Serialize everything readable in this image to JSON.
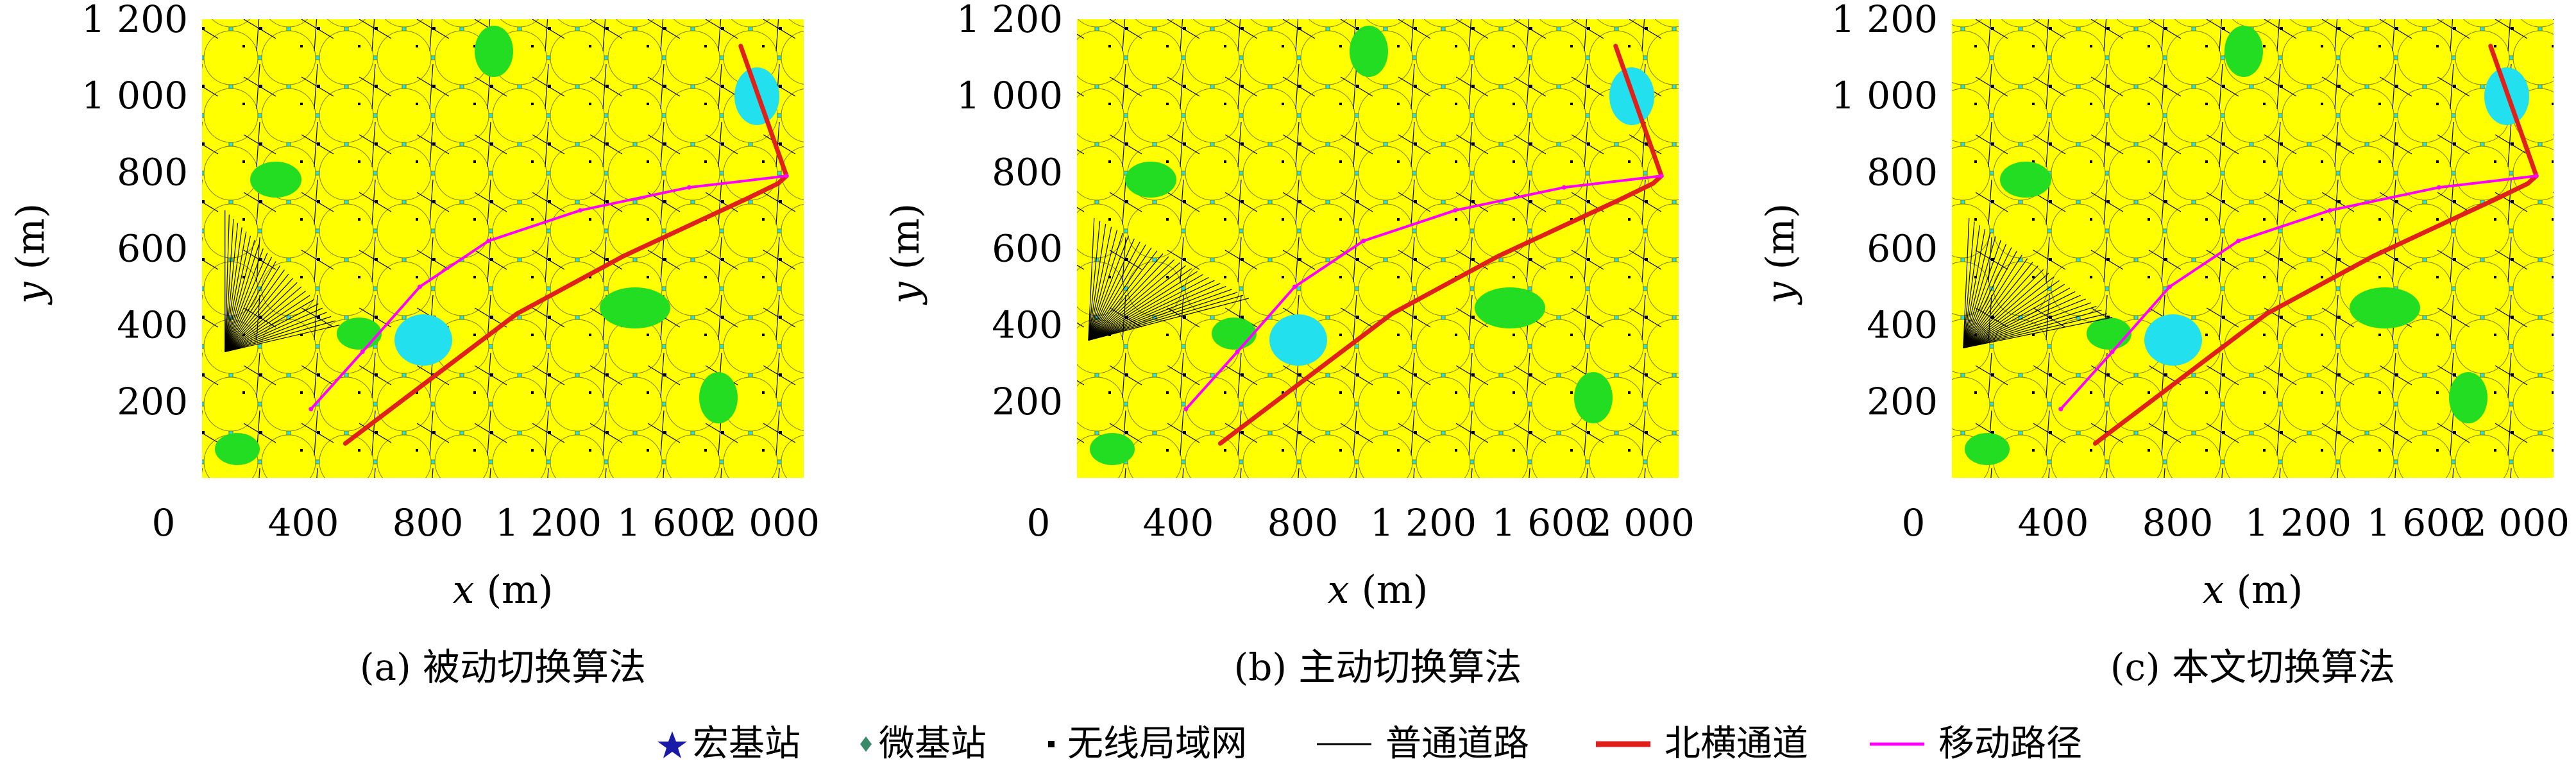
{
  "chart_data": [
    {
      "type": "scatter",
      "caption": "(a) 被动切换算法",
      "xlabel": "x (m)",
      "ylabel": "y (m)",
      "xlim": [
        0,
        2100
      ],
      "ylim": [
        0,
        1200
      ],
      "x_tick_labels": [
        "0",
        "400",
        "800",
        "1 200",
        "1 600",
        "2 000"
      ],
      "y_tick_labels": [
        "1 200",
        "1 000",
        "800",
        "600",
        "400",
        "200"
      ],
      "series": [
        {
          "name": "北横通道",
          "points": [
            [
              1880,
              1130
            ],
            [
              2040,
              790
            ],
            [
              2010,
              770
            ],
            [
              1900,
              730
            ],
            [
              1470,
              580
            ],
            [
              1100,
              430
            ],
            [
              800,
              260
            ],
            [
              500,
              90
            ]
          ]
        },
        {
          "name": "移动路径",
          "points": [
            [
              380,
              180
            ],
            [
              560,
              330
            ],
            [
              760,
              500
            ],
            [
              1000,
              620
            ],
            [
              1320,
              700
            ],
            [
              1700,
              760
            ],
            [
              2040,
              790
            ]
          ]
        }
      ]
    },
    {
      "type": "scatter",
      "caption": "(b) 主动切换算法",
      "xlabel": "x (m)",
      "ylabel": "y (m)",
      "xlim": [
        0,
        2100
      ],
      "ylim": [
        0,
        1200
      ],
      "x_tick_labels": [
        "0",
        "400",
        "800",
        "1 200",
        "1 600",
        "2 000"
      ],
      "y_tick_labels": [
        "1 200",
        "1 000",
        "800",
        "600",
        "400",
        "200"
      ],
      "series": [
        {
          "name": "北横通道",
          "points": [
            [
              1880,
              1130
            ],
            [
              2040,
              790
            ],
            [
              2010,
              770
            ],
            [
              1900,
              730
            ],
            [
              1470,
              580
            ],
            [
              1100,
              430
            ],
            [
              800,
              260
            ],
            [
              500,
              90
            ]
          ]
        },
        {
          "name": "移动路径",
          "points": [
            [
              380,
              180
            ],
            [
              560,
              330
            ],
            [
              760,
              500
            ],
            [
              1000,
              620
            ],
            [
              1320,
              700
            ],
            [
              1700,
              760
            ],
            [
              2040,
              790
            ]
          ]
        }
      ]
    },
    {
      "type": "scatter",
      "caption": "(c) 本文切换算法",
      "xlabel": "x (m)",
      "ylabel": "y (m)",
      "xlim": [
        0,
        2100
      ],
      "ylim": [
        0,
        1200
      ],
      "x_tick_labels": [
        "0",
        "400",
        "800",
        "1 200",
        "1 600",
        "2 000"
      ],
      "y_tick_labels": [
        "1 200",
        "1 000",
        "800",
        "600",
        "400",
        "200"
      ],
      "series": [
        {
          "name": "北横通道",
          "points": [
            [
              1880,
              1130
            ],
            [
              2040,
              790
            ],
            [
              2010,
              770
            ],
            [
              1900,
              730
            ],
            [
              1470,
              580
            ],
            [
              1100,
              430
            ],
            [
              800,
              260
            ],
            [
              500,
              90
            ]
          ]
        },
        {
          "name": "移动路径",
          "points": [
            [
              380,
              180
            ],
            [
              560,
              330
            ],
            [
              760,
              500
            ],
            [
              1000,
              620
            ],
            [
              1320,
              700
            ],
            [
              1700,
              760
            ],
            [
              2040,
              790
            ]
          ]
        }
      ]
    }
  ],
  "legend": {
    "items": [
      {
        "label": "宏基站",
        "marker": "star",
        "color": "#1a1aa8"
      },
      {
        "label": "微基站",
        "marker": "diamond",
        "color": "#3a8a6a"
      },
      {
        "label": "无线局域网",
        "marker": "square",
        "color": "#000000"
      },
      {
        "label": "普通道路",
        "marker": "line",
        "color": "#000000"
      },
      {
        "label": "北横通道",
        "marker": "thick-line",
        "color": "#e0201a"
      },
      {
        "label": "移动路径",
        "marker": "line",
        "color": "#ff00ff"
      }
    ]
  },
  "colors": {
    "background_area": "#22e0ee",
    "coverage": "#ffff00",
    "overlap": "#22dd22",
    "road": "#000000",
    "channel": "#e0201a",
    "path": "#ff00ff"
  }
}
